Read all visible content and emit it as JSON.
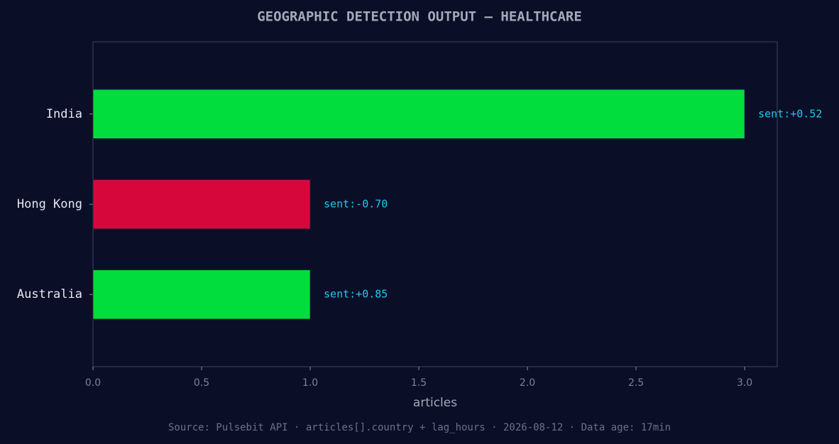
{
  "chart_data": {
    "type": "hbar",
    "title": "GEOGRAPHIC DETECTION OUTPUT — HEALTHCARE",
    "categories": [
      "India",
      "Hong Kong",
      "Australia"
    ],
    "values": [
      3,
      1,
      1
    ],
    "colors": [
      "#00dd3c",
      "#d6083b",
      "#00dd3c"
    ],
    "bar_labels": [
      "sent:+0.52",
      "sent:-0.70",
      "sent:+0.85"
    ],
    "xlabel": "articles",
    "xlim": [
      0,
      3.15
    ],
    "xticks": [
      {
        "value": 0,
        "label": "0.0"
      },
      0.5,
      {
        "value": 1,
        "label": "1.0"
      },
      1.5,
      {
        "value": 2,
        "label": "2.0"
      },
      2.5,
      {
        "value": 3,
        "label": "3.0"
      }
    ],
    "source": "Source: Pulsebit API · articles[].country + lag_hours · 2026-08-12 · Data age: 17min"
  }
}
